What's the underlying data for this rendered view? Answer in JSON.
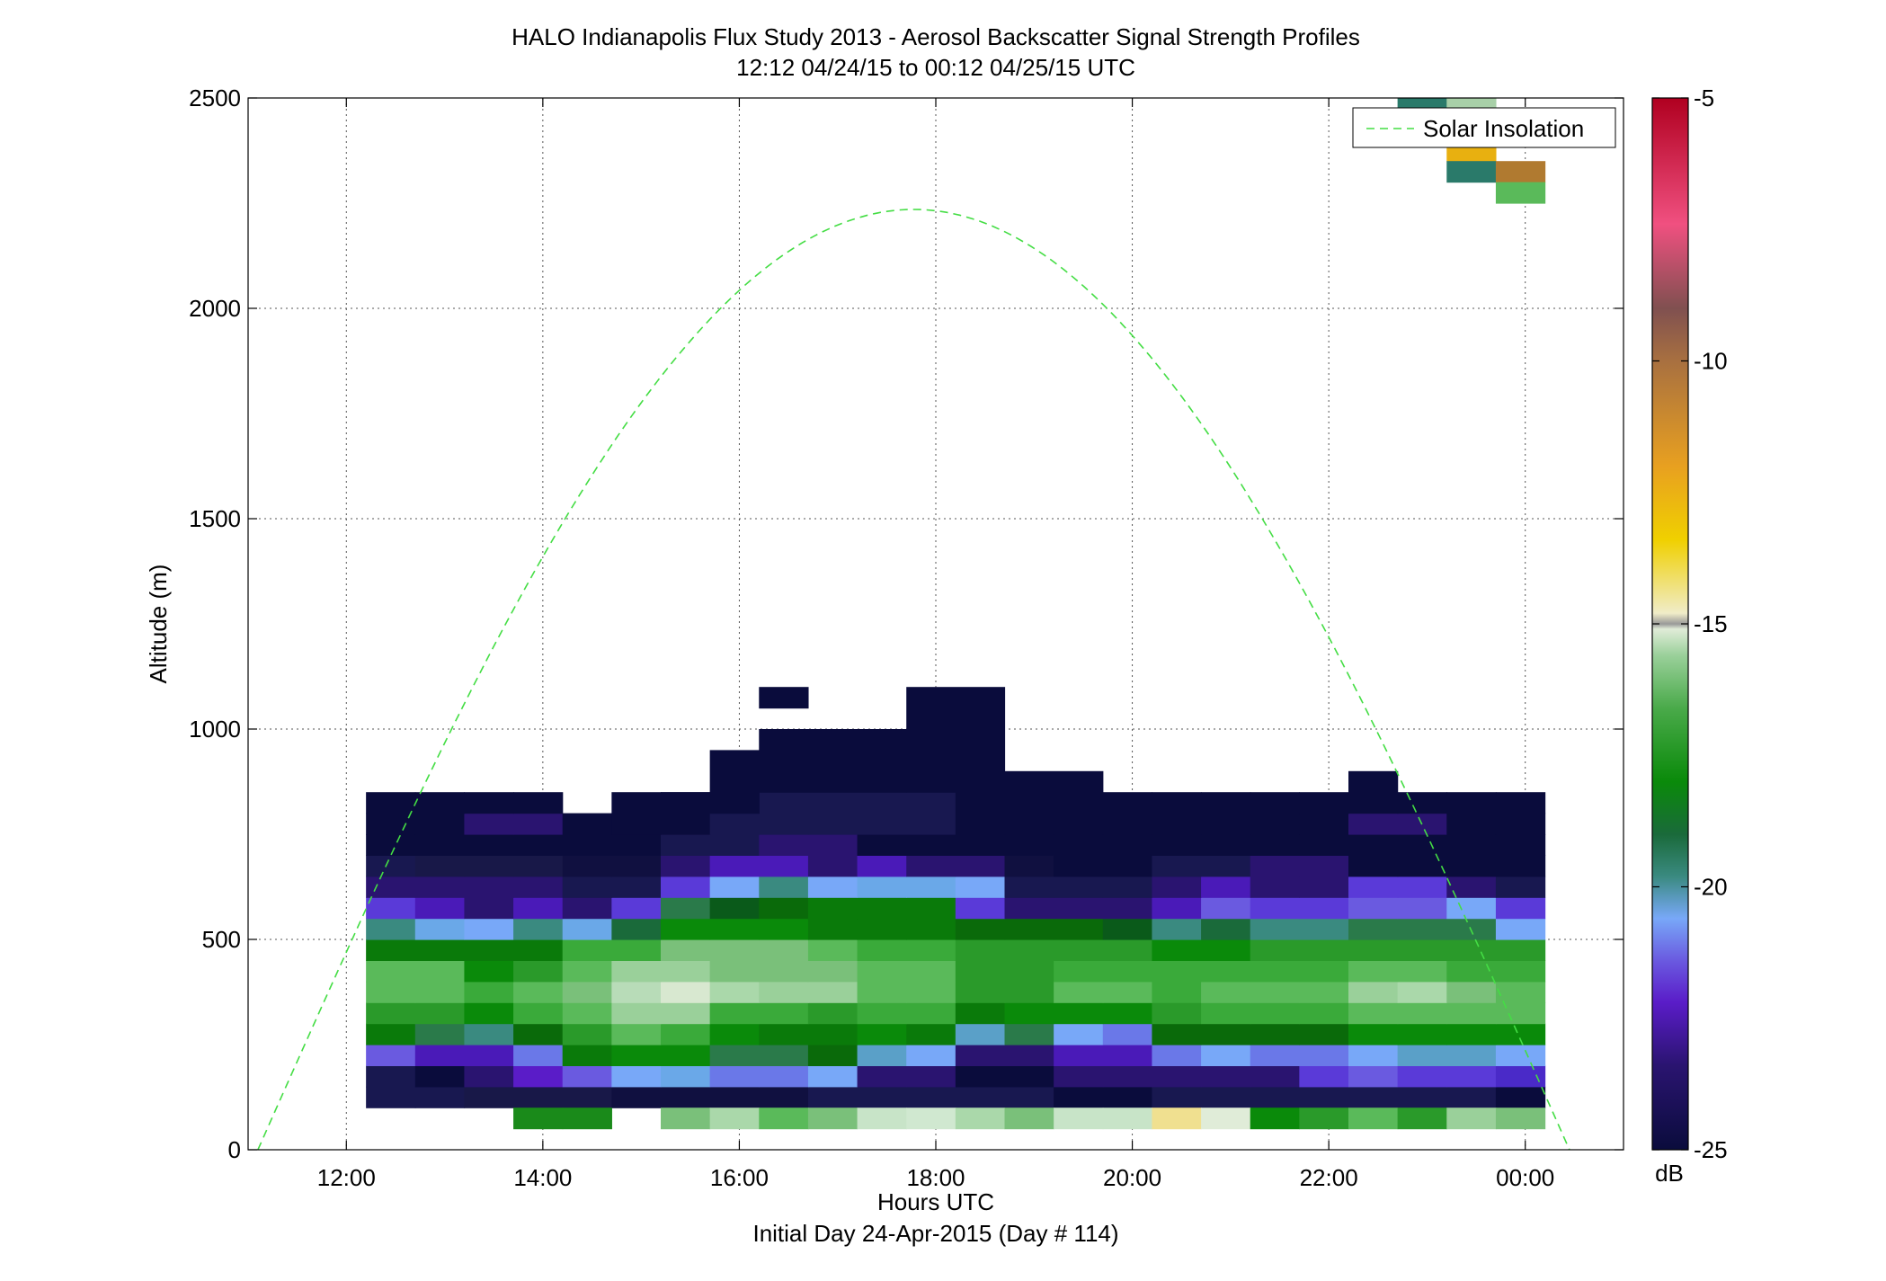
{
  "chart_data": {
    "type": "heatmap",
    "title": "HALO Indianapolis Flux Study 2013 - Aerosol Backscatter Signal Strength Profiles",
    "subtitle": "12:12 04/24/15 to 00:12 04/25/15  UTC",
    "xlabel": "Hours UTC",
    "xlabel2": "Initial Day 24-Apr-2015 (Day # 114)",
    "ylabel": "Altitude (m)",
    "x_ticks": [
      "12:00",
      "14:00",
      "16:00",
      "18:00",
      "20:00",
      "22:00",
      "00:00"
    ],
    "x_tick_values": [
      12,
      14,
      16,
      18,
      20,
      22,
      24
    ],
    "xlim": [
      11,
      25
    ],
    "y_ticks": [
      0,
      500,
      1000,
      1500,
      2000,
      2500
    ],
    "ylim": [
      0,
      2500
    ],
    "grid": true,
    "colorbar": {
      "label": "dB",
      "ticks": [
        -5,
        -10,
        -15,
        -20,
        -25
      ],
      "range": [
        -25,
        -5
      ],
      "stops": [
        [
          0.0,
          "#0a0c3c"
        ],
        [
          0.08,
          "#2a1470"
        ],
        [
          0.14,
          "#5a1cc8"
        ],
        [
          0.18,
          "#6a5ae0"
        ],
        [
          0.22,
          "#78a8f8"
        ],
        [
          0.26,
          "#3a8a80"
        ],
        [
          0.3,
          "#1a6a3a"
        ],
        [
          0.35,
          "#0a8a0a"
        ],
        [
          0.42,
          "#4aaa4a"
        ],
        [
          0.47,
          "#9ad09a"
        ],
        [
          0.495,
          "#e0ecd8"
        ],
        [
          0.5,
          "#999999"
        ],
        [
          0.51,
          "#f0ecc8"
        ],
        [
          0.58,
          "#f0d000"
        ],
        [
          0.65,
          "#e8a020"
        ],
        [
          0.75,
          "#a87040"
        ],
        [
          0.8,
          "#805050"
        ],
        [
          0.88,
          "#f05080"
        ],
        [
          1.0,
          "#b00020"
        ]
      ]
    },
    "legend": {
      "entries": [
        "Solar Insolation"
      ],
      "location": "top-right"
    },
    "solar_insolation": {
      "style": "dashed",
      "color": "#44dd44",
      "x_start": 11.1,
      "x_end": 24.45,
      "peak_x": 17.8,
      "peak_y": 2235
    },
    "grid_spec": {
      "x0": 12.2,
      "dx": 0.5,
      "cols": 24,
      "y0": 100,
      "dy": 50,
      "rows": 15
    },
    "cell_colors": [
      [
        "#181850",
        "#181850",
        "#181848",
        "#181848",
        "#181848",
        "#101040",
        "#101040",
        "#101040",
        "#101040",
        "#181850",
        "#181850",
        "#181850",
        "#181850",
        "#181850",
        "#0a0c3c",
        "#0a0c3c",
        "#181850",
        "#181850",
        "#181850",
        "#181850",
        "#181850",
        "#181850",
        "#181850",
        "#0a0c3c"
      ],
      [
        "#181850",
        "#0a0c3c",
        "#2a1470",
        "#5a1cc8",
        "#6a5ae0",
        "#78a8f8",
        "#6aa8e8",
        "#6a78e8",
        "#6a78e8",
        "#78a8f8",
        "#2a1470",
        "#2a1470",
        "#0a0c3c",
        "#0a0c3c",
        "#2a1470",
        "#2a1470",
        "#2a1470",
        "#2a1470",
        "#2a1470",
        "#5a3ad8",
        "#6a5ae0",
        "#5a3ad8",
        "#5a3ad8",
        "#4a2ac8"
      ],
      [
        "#6a5ae0",
        "#4a1ab8",
        "#4a1ab8",
        "#6a78e8",
        "#0a7a0a",
        "#0a8a0a",
        "#0a8a0a",
        "#2a7a4a",
        "#2a7a4a",
        "#0a6a0a",
        "#5aa0c8",
        "#78a8f8",
        "#2a1470",
        "#2a1470",
        "#4a1ab8",
        "#4a1ab8",
        "#6a78e8",
        "#78a8f8",
        "#6a78e8",
        "#6a78e8",
        "#78a8f8",
        "#5aa0c8",
        "#5aa0c8",
        "#78a8f8"
      ],
      [
        "#0a7a0a",
        "#2a7a4a",
        "#3a8a80",
        "#0a6a0a",
        "#2a9a2a",
        "#5aba5a",
        "#3aaa3a",
        "#0a8a0a",
        "#0a7a0a",
        "#0a7a0a",
        "#0a8a0a",
        "#0a7a0a",
        "#5aa0c8",
        "#2a7a4a",
        "#78a8f8",
        "#6a78e8",
        "#0a6a0a",
        "#0a6a0a",
        "#0a6a0a",
        "#0a6a0a",
        "#0a8a0a",
        "#0a8a0a",
        "#0a8a0a",
        "#0a8a0a"
      ],
      [
        "#2a9a2a",
        "#2a9a2a",
        "#0a8a0a",
        "#3aaa3a",
        "#5aba5a",
        "#9ad09a",
        "#9ad09a",
        "#3aaa3a",
        "#3aaa3a",
        "#2a9a2a",
        "#3aaa3a",
        "#3aaa3a",
        "#0a7a0a",
        "#0a8a0a",
        "#0a8a0a",
        "#0a8a0a",
        "#2a9a2a",
        "#3aaa3a",
        "#3aaa3a",
        "#3aaa3a",
        "#5aba5a",
        "#5aba5a",
        "#5aba5a",
        "#5aba5a"
      ],
      [
        "#5aba5a",
        "#5aba5a",
        "#3aaa3a",
        "#5aba5a",
        "#7ac07a",
        "#b8dcb8",
        "#d8e8d0",
        "#aad8aa",
        "#9ad09a",
        "#9ad09a",
        "#5aba5a",
        "#5aba5a",
        "#2a9a2a",
        "#2a9a2a",
        "#5aba5a",
        "#5aba5a",
        "#3aaa3a",
        "#5aba5a",
        "#5aba5a",
        "#5aba5a",
        "#9ad09a",
        "#aad8aa",
        "#7ac07a",
        "#5aba5a"
      ],
      [
        "#5aba5a",
        "#5aba5a",
        "#0a8a0a",
        "#2a9a2a",
        "#5aba5a",
        "#9ad09a",
        "#9ad09a",
        "#7ac07a",
        "#7ac07a",
        "#7ac07a",
        "#5aba5a",
        "#5aba5a",
        "#2a9a2a",
        "#2a9a2a",
        "#3aaa3a",
        "#3aaa3a",
        "#3aaa3a",
        "#3aaa3a",
        "#3aaa3a",
        "#3aaa3a",
        "#5aba5a",
        "#5aba5a",
        "#3aaa3a",
        "#3aaa3a"
      ],
      [
        "#0a7a0a",
        "#0a7a0a",
        "#0a7a0a",
        "#0a7a0a",
        "#3aaa3a",
        "#3aaa3a",
        "#7ac07a",
        "#7ac07a",
        "#7ac07a",
        "#5aba5a",
        "#3aaa3a",
        "#3aaa3a",
        "#2a9a2a",
        "#2a9a2a",
        "#2a9a2a",
        "#2a9a2a",
        "#0a8a0a",
        "#0a8a0a",
        "#2a9a2a",
        "#2a9a2a",
        "#2a9a2a",
        "#2a9a2a",
        "#2a9a2a",
        "#2a9a2a"
      ],
      [
        "#3a8a80",
        "#6aa8e8",
        "#78a8f8",
        "#3a8a80",
        "#6aa8e8",
        "#1a6a3a",
        "#0a8a0a",
        "#0a8a0a",
        "#0a8a0a",
        "#0a7a0a",
        "#0a7a0a",
        "#0a7a0a",
        "#0a6a0a",
        "#0a6a0a",
        "#0a6a0a",
        "#0a5a1a",
        "#3a8a80",
        "#1a6a3a",
        "#3a8a80",
        "#3a8a80",
        "#2a7a4a",
        "#2a7a4a",
        "#2a7a4a",
        "#78a8f8"
      ],
      [
        "#5a3ad8",
        "#4a1ab8",
        "#2a1470",
        "#4a1ab8",
        "#2a1470",
        "#5a3ad8",
        "#2a7a4a",
        "#0a5a1a",
        "#0a6a0a",
        "#0a7a0a",
        "#0a7a0a",
        "#0a7a0a",
        "#5a3ad8",
        "#2a1470",
        "#2a1470",
        "#2a1470",
        "#4a1ab8",
        "#6a5ae0",
        "#5a3ad8",
        "#5a3ad8",
        "#6a5ae0",
        "#6a5ae0",
        "#78a8f8",
        "#5a3ad8"
      ],
      [
        "#2a1470",
        "#2a1470",
        "#2a1470",
        "#2a1470",
        "#181850",
        "#181850",
        "#5a3ad8",
        "#78a8f8",
        "#3a8a80",
        "#78a8f8",
        "#6aa8e8",
        "#6aa8e8",
        "#78a8f8",
        "#181850",
        "#181850",
        "#181850",
        "#2a1470",
        "#4a1ab8",
        "#2a1470",
        "#2a1470",
        "#5a3ad8",
        "#5a3ad8",
        "#2a1470",
        "#181850"
      ],
      [
        "#181850",
        "#181848",
        "#181848",
        "#181848",
        "#101040",
        "#101040",
        "#2a1470",
        "#4a1ab8",
        "#4a1ab8",
        "#2a1470",
        "#4a1ab8",
        "#2a1470",
        "#2a1470",
        "#101040",
        "#0a0c3c",
        "#0a0c3c",
        "#181850",
        "#181850",
        "#2a1470",
        "#2a1470",
        "#0a0c3c",
        "#0a0c3c",
        "#0a0c3c",
        "#0a0c3c"
      ],
      [
        "#0a0c3c",
        "#0a0c3c",
        "#0a0c3c",
        "#0a0c3c",
        "#0a0c3c",
        "#0a0c3c",
        "#181850",
        "#181850",
        "#2a1470",
        "#2a1470",
        "#0a0c3c",
        "#0a0c3c",
        "#0a0c3c",
        "#0a0c3c",
        "#0a0c3c",
        "#0a0c3c",
        "#0a0c3c",
        "#0a0c3c",
        "#0a0c3c",
        "#0a0c3c",
        "#0a0c3c",
        "#0a0c3c",
        "#0a0c3c",
        "#0a0c3c"
      ],
      [
        "#0a0c3c",
        "#0a0c3c",
        "#2a1470",
        "#2a1470",
        "#0a0c3c",
        "#0a0c3c",
        "#0a0c3c",
        "#181850",
        "#181850",
        "#181850",
        "#181850",
        "#181850",
        "#0a0c3c",
        "#0a0c3c",
        "#0a0c3c",
        "#0a0c3c",
        "#0a0c3c",
        "#0a0c3c",
        "#0a0c3c",
        "#0a0c3c",
        "#2a1470",
        "#2a1470",
        "#0a0c3c",
        "#0a0c3c"
      ],
      [
        "#0a0c3c",
        "#0a0c3c",
        "#0a0c3c",
        "#0a0c3c",
        null,
        "#0a0c3c",
        "#0a0c3c",
        "#181850",
        "#181850",
        "#181850",
        "#181850",
        "#181850",
        "#0a0c3c",
        "#0a0c3c",
        "#0a0c3c",
        "#0a0c3c",
        "#0a0c3c",
        "#0a0c3c",
        "#0a0c3c",
        "#0a0c3c",
        "#0a0c3c",
        "#0a0c3c",
        "#0a0c3c",
        "#0a0c3c"
      ]
    ],
    "extra_cells": [
      {
        "x": 13.7,
        "y": 50,
        "w": 0.5,
        "h": 50,
        "color": "#1a8a1a"
      },
      {
        "x": 14.2,
        "y": 50,
        "w": 0.5,
        "h": 50,
        "color": "#1a8a1a"
      },
      {
        "x": 15.2,
        "y": 50,
        "w": 0.5,
        "h": 50,
        "color": "#7ac07a"
      },
      {
        "x": 15.7,
        "y": 50,
        "w": 0.5,
        "h": 50,
        "color": "#aad8aa"
      },
      {
        "x": 16.2,
        "y": 50,
        "w": 0.5,
        "h": 50,
        "color": "#5aba5a"
      },
      {
        "x": 16.7,
        "y": 50,
        "w": 0.5,
        "h": 50,
        "color": "#7ac07a"
      },
      {
        "x": 17.2,
        "y": 50,
        "w": 0.5,
        "h": 50,
        "color": "#c8e4c8"
      },
      {
        "x": 17.7,
        "y": 50,
        "w": 0.5,
        "h": 50,
        "color": "#d0e8d0"
      },
      {
        "x": 18.2,
        "y": 50,
        "w": 0.5,
        "h": 50,
        "color": "#aad8aa"
      },
      {
        "x": 18.7,
        "y": 50,
        "w": 0.5,
        "h": 50,
        "color": "#7ac07a"
      },
      {
        "x": 19.2,
        "y": 50,
        "w": 0.5,
        "h": 50,
        "color": "#c8e4c8"
      },
      {
        "x": 19.7,
        "y": 50,
        "w": 0.5,
        "h": 50,
        "color": "#c8e4c8"
      },
      {
        "x": 20.2,
        "y": 50,
        "w": 0.5,
        "h": 50,
        "color": "#f0e090"
      },
      {
        "x": 20.7,
        "y": 50,
        "w": 0.5,
        "h": 50,
        "color": "#e0ecd8"
      },
      {
        "x": 21.2,
        "y": 50,
        "w": 0.5,
        "h": 50,
        "color": "#0a8a0a"
      },
      {
        "x": 21.7,
        "y": 50,
        "w": 0.5,
        "h": 50,
        "color": "#2a9a2a"
      },
      {
        "x": 22.2,
        "y": 50,
        "w": 0.5,
        "h": 50,
        "color": "#5aba5a"
      },
      {
        "x": 22.7,
        "y": 50,
        "w": 0.5,
        "h": 50,
        "color": "#2a9a2a"
      },
      {
        "x": 23.2,
        "y": 50,
        "w": 0.5,
        "h": 50,
        "color": "#9ad09a"
      },
      {
        "x": 23.7,
        "y": 50,
        "w": 0.5,
        "h": 50,
        "color": "#7ac07a"
      },
      {
        "x": 14.7,
        "y": 750,
        "w": 0.5,
        "h": 50,
        "color": "#0a0c3c"
      },
      {
        "x": 15.2,
        "y": 800,
        "w": 0.5,
        "h": 50,
        "color": "#0a0c3c"
      },
      {
        "x": 15.7,
        "y": 800,
        "w": 0.5,
        "h": 150,
        "color": "#0a0c3c"
      },
      {
        "x": 16.2,
        "y": 850,
        "w": 1.5,
        "h": 150,
        "color": "#0a0c3c"
      },
      {
        "x": 17.7,
        "y": 850,
        "w": 1.0,
        "h": 250,
        "color": "#0a0c3c"
      },
      {
        "x": 18.7,
        "y": 850,
        "w": 1.0,
        "h": 50,
        "color": "#0a0c3c"
      },
      {
        "x": 22.2,
        "y": 850,
        "w": 0.5,
        "h": 50,
        "color": "#0a0c3c"
      },
      {
        "x": 16.2,
        "y": 1050,
        "w": 0.5,
        "h": 50,
        "color": "#0a0c3c"
      },
      {
        "x": 22.7,
        "y": 2450,
        "w": 0.5,
        "h": 50,
        "color": "#2a7a6a"
      },
      {
        "x": 23.2,
        "y": 2450,
        "w": 0.5,
        "h": 50,
        "color": "#a8d0a8"
      },
      {
        "x": 23.2,
        "y": 2350,
        "w": 0.5,
        "h": 50,
        "color": "#e8b010"
      },
      {
        "x": 23.2,
        "y": 2300,
        "w": 0.5,
        "h": 50,
        "color": "#2a7a6a"
      },
      {
        "x": 23.7,
        "y": 2300,
        "w": 0.5,
        "h": 50,
        "color": "#b07a30"
      },
      {
        "x": 23.7,
        "y": 2250,
        "w": 0.5,
        "h": 50,
        "color": "#5aba5a"
      }
    ]
  }
}
